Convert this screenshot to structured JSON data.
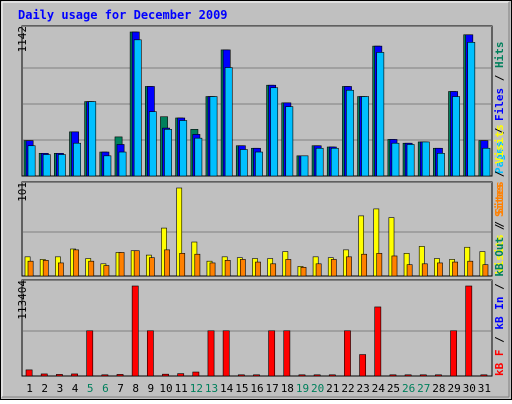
{
  "chart_data": [
    {
      "type": "bar",
      "title": "Daily usage for December 2009",
      "y_max_label": "1142",
      "legend": [
        "Pages",
        "Files",
        "Hits"
      ],
      "categories": [
        "1",
        "2",
        "3",
        "4",
        "5",
        "6",
        "7",
        "8",
        "9",
        "10",
        "11",
        "12",
        "13",
        "14",
        "15",
        "16",
        "17",
        "18",
        "19",
        "20",
        "21",
        "22",
        "23",
        "24",
        "25",
        "26",
        "27",
        "28",
        "29",
        "30",
        "31"
      ],
      "weekend_days": [
        "5",
        "6",
        "12",
        "13",
        "19",
        "20",
        "26",
        "27"
      ],
      "series": [
        {
          "name": "Hits",
          "values": [
            280,
            180,
            180,
            350,
            590,
            190,
            310,
            1142,
            710,
            470,
            460,
            370,
            630,
            1000,
            240,
            220,
            720,
            580,
            160,
            240,
            230,
            710,
            630,
            1030,
            290,
            260,
            270,
            220,
            670,
            1120,
            280
          ]
        },
        {
          "name": "Files",
          "values": [
            280,
            180,
            180,
            350,
            590,
            190,
            250,
            1142,
            710,
            380,
            460,
            330,
            630,
            1000,
            240,
            220,
            720,
            580,
            160,
            240,
            230,
            710,
            630,
            1030,
            290,
            260,
            270,
            220,
            670,
            1120,
            280
          ]
        },
        {
          "name": "Pages",
          "values": [
            240,
            170,
            170,
            260,
            590,
            160,
            190,
            1080,
            510,
            370,
            440,
            300,
            630,
            860,
            210,
            190,
            700,
            550,
            160,
            220,
            220,
            680,
            630,
            980,
            260,
            250,
            270,
            180,
            630,
            1060,
            220
          ]
        }
      ],
      "colors": {
        "Hits": "#00805c",
        "Files": "#0000ff",
        "Pages": "#00c0ff"
      }
    },
    {
      "type": "bar",
      "y_max_label": "101",
      "legend": [
        "Visits",
        "Sites"
      ],
      "categories": [
        "1",
        "2",
        "3",
        "4",
        "5",
        "6",
        "7",
        "8",
        "9",
        "10",
        "11",
        "12",
        "13",
        "14",
        "15",
        "16",
        "17",
        "18",
        "19",
        "20",
        "21",
        "22",
        "23",
        "24",
        "25",
        "26",
        "27",
        "28",
        "29",
        "30",
        "31"
      ],
      "series": [
        {
          "name": "Visits",
          "values": [
            22,
            19,
            22,
            31,
            20,
            14,
            27,
            29,
            24,
            55,
            101,
            39,
            17,
            22,
            21,
            20,
            20,
            28,
            11,
            22,
            21,
            30,
            69,
            77,
            67,
            26,
            34,
            20,
            19,
            33,
            28
          ]
        },
        {
          "name": "Sites",
          "values": [
            17,
            18,
            15,
            30,
            17,
            12,
            27,
            29,
            21,
            30,
            26,
            25,
            15,
            18,
            19,
            16,
            14,
            19,
            10,
            14,
            19,
            22,
            25,
            26,
            23,
            13,
            14,
            15,
            16,
            17,
            13
          ]
        }
      ],
      "colors": {
        "Visits": "#ffff00",
        "Sites": "#ff8000"
      }
    },
    {
      "type": "bar",
      "y_max_label": "113404",
      "legend": [
        "kB F",
        "kB In",
        "kB Out",
        "Sites",
        "Visits"
      ],
      "categories": [
        "1",
        "2",
        "3",
        "4",
        "5",
        "6",
        "7",
        "8",
        "9",
        "10",
        "11",
        "12",
        "13",
        "14",
        "15",
        "16",
        "17",
        "18",
        "19",
        "20",
        "21",
        "22",
        "23",
        "24",
        "25",
        "26",
        "27",
        "28",
        "29",
        "30",
        "31"
      ],
      "series": [
        {
          "name": "kB F",
          "values": [
            7700,
            2600,
            2000,
            2600,
            57000,
            1500,
            2000,
            113404,
            57000,
            2300,
            3000,
            5000,
            57000,
            57000,
            1500,
            1500,
            57000,
            57000,
            1500,
            1500,
            1500,
            57000,
            27000,
            87000,
            1500,
            1500,
            1500,
            1500,
            57000,
            113404,
            1500
          ]
        }
      ],
      "colors": {
        "kB F": "#ff0000"
      }
    }
  ],
  "legend_colors": {
    "Pages": "#00c0ff",
    "Files": "#0000ff",
    "Hits": "#00805c",
    "Visits": "#ffff00",
    "Sites": "#ff8000",
    "kB F": "#ff0000",
    "kB In": "#0000ff",
    "kB Out": "#00805c"
  },
  "x_label_colors": {
    "weekday": "#000000",
    "weekend": "#00805c"
  }
}
